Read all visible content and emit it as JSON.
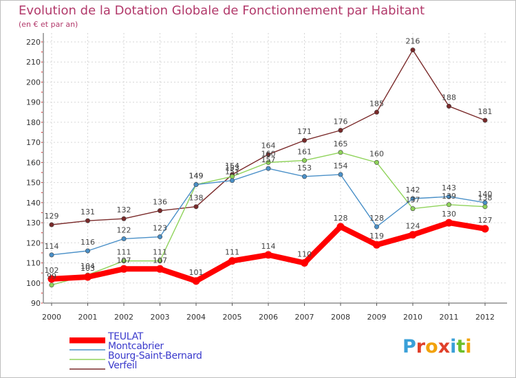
{
  "title": "Evolution de la Dotation Globale de Fonctionnement par Habitant",
  "subtitle": "(en € et par an)",
  "logo_text": "Proxiti",
  "chart_data": {
    "type": "line",
    "title": "Evolution de la Dotation Globale de Fonctionnement par Habitant",
    "subtitle": "(en € et par an)",
    "x": [
      "2000",
      "2001",
      "2002",
      "2003",
      "2004",
      "2005",
      "2006",
      "2007",
      "2008",
      "2009",
      "2010",
      "2011",
      "2012"
    ],
    "ylim": [
      90,
      220
    ],
    "yticks": [
      90,
      100,
      110,
      120,
      130,
      140,
      150,
      160,
      170,
      180,
      190,
      200,
      210,
      220
    ],
    "grid": true,
    "legend_position": "bottom-left",
    "series": [
      {
        "name": "TEULAT",
        "color": "#ff0000",
        "values": [
          102,
          103,
          107,
          107,
          101,
          111,
          114,
          110,
          128,
          119,
          124,
          130,
          127
        ],
        "labels": [
          "102",
          "103",
          "107",
          "107",
          "101",
          "111",
          "114",
          "110",
          "128",
          "119",
          "124",
          "130",
          "127"
        ]
      },
      {
        "name": "Montcabrier",
        "color": "#4a90c8",
        "values": [
          114,
          116,
          122,
          123,
          149,
          151,
          157,
          153,
          154,
          128,
          142,
          143,
          140
        ],
        "labels": [
          "114",
          "116",
          "122",
          "123",
          "149",
          "151",
          "157",
          "153",
          "154",
          "128",
          "142",
          "143",
          "140"
        ]
      },
      {
        "name": "Bourg-Saint-Bernard",
        "color": "#8fd35a",
        "values": [
          99,
          104,
          111,
          111,
          149,
          153,
          160,
          161,
          165,
          160,
          137,
          139,
          138
        ],
        "labels": [
          "99",
          "104",
          "111",
          "111",
          "149",
          "153",
          "160",
          "161",
          "165",
          "160",
          "137",
          "139",
          "138"
        ]
      },
      {
        "name": "Verfeil",
        "color": "#7a2a2a",
        "values": [
          129,
          131,
          132,
          136,
          138,
          154,
          164,
          171,
          176,
          185,
          216,
          188,
          181
        ],
        "labels": [
          "129",
          "131",
          "132",
          "136",
          "138",
          "154",
          "164",
          "171",
          "176",
          "185",
          "216",
          "188",
          "181"
        ]
      }
    ]
  }
}
